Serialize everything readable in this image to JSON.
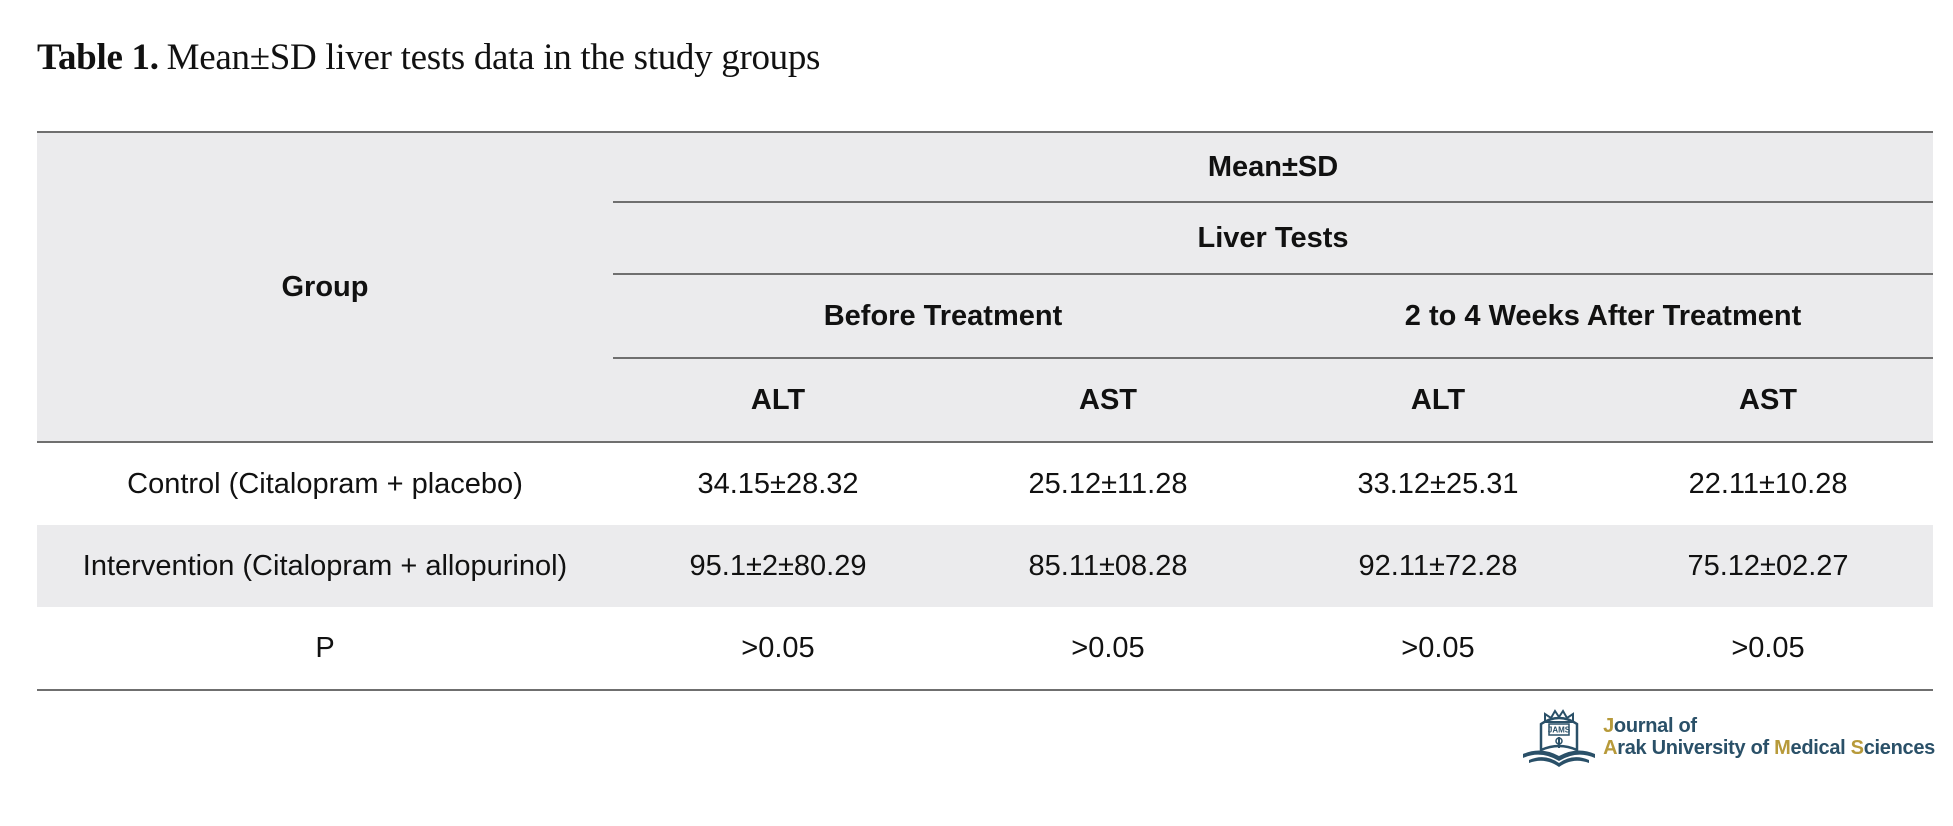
{
  "caption": {
    "label": "Table 1.",
    "text": "Mean±SD liver tests data in the study groups"
  },
  "table": {
    "group_header": "Group",
    "stat_header": "Mean±SD",
    "tests_header": "Liver Tests",
    "period_headers": [
      "Before Treatment",
      "2 to 4 Weeks After Treatment"
    ],
    "measure_headers": [
      "ALT",
      "AST",
      "ALT",
      "AST"
    ],
    "rows": [
      {
        "group": "Control (Citalopram + placebo)",
        "values": [
          "34.15±28.32",
          "25.12±11.28",
          "33.12±25.31",
          "22.11±10.28"
        ]
      },
      {
        "group": "Intervention (Citalopram + allopurinol)",
        "values": [
          "95.1±2±80.29",
          "85.11±08.28",
          "92.11±72.28",
          "75.12±02.27"
        ]
      },
      {
        "group": "P",
        "values": [
          ">0.05",
          ">0.05",
          ">0.05",
          ">0.05"
        ]
      }
    ]
  },
  "logo": {
    "line1": {
      "initial": "J",
      "rest": "ournal of"
    },
    "line2": [
      {
        "initial": "A",
        "rest": "rak University of "
      },
      {
        "initial": "M",
        "rest": "edical "
      },
      {
        "initial": "S",
        "rest": "ciences"
      }
    ],
    "emblem_text": "JAMS",
    "accent_color": "#b79a3a",
    "brand_color": "#2a5068"
  }
}
